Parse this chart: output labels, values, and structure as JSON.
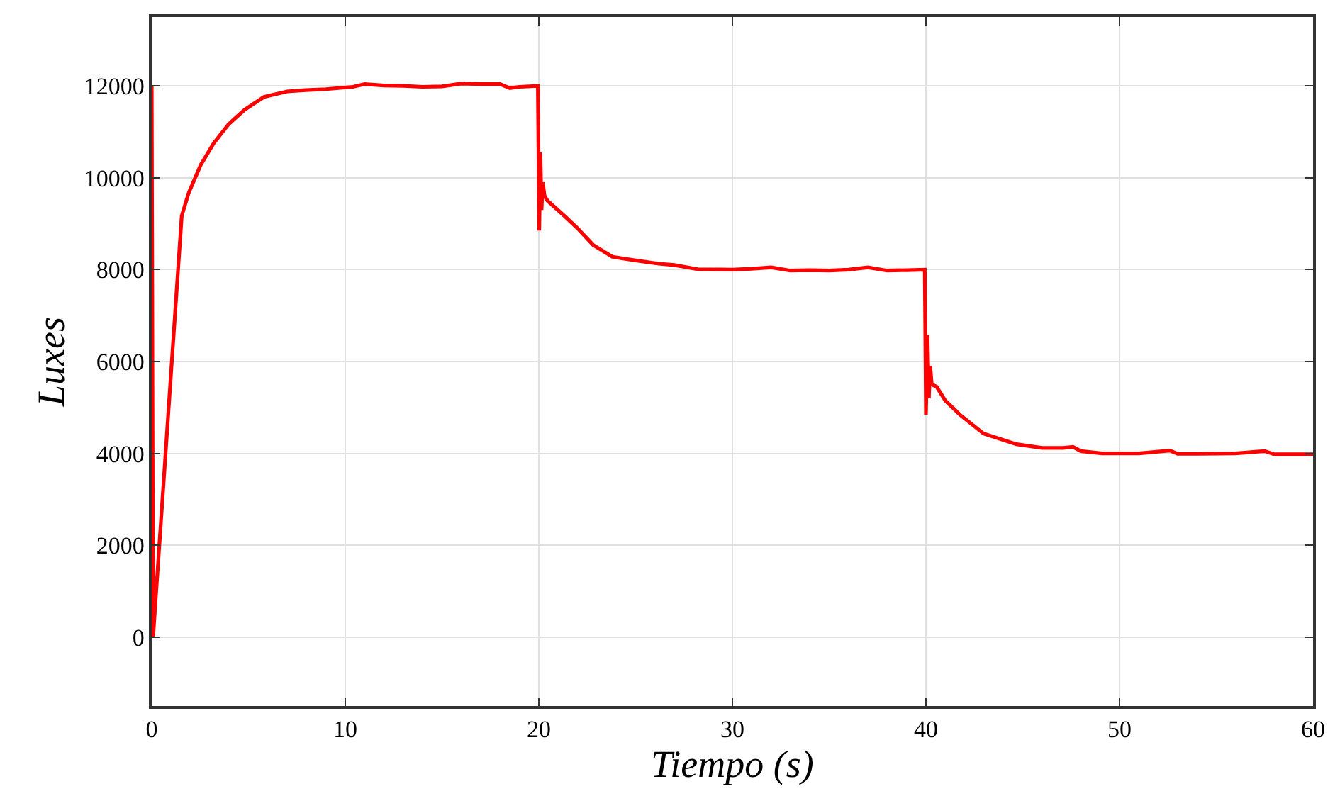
{
  "chart_data": {
    "type": "line",
    "xlabel": "Tiempo (s)",
    "ylabel": "Luxes",
    "xlim": [
      0,
      60
    ],
    "xticks": [
      0,
      10,
      20,
      30,
      40,
      50,
      60
    ],
    "ylim": [
      -1500,
      13500
    ],
    "yticks": [
      0,
      2000,
      4000,
      6000,
      8000,
      10000,
      12000
    ],
    "grid": true,
    "marker": "none",
    "line_style": "solid",
    "x": [
      0,
      0.07,
      1.55,
      1.9,
      2.53,
      3.2,
      3.98,
      4.8,
      5.8,
      7.0,
      7.96,
      9.0,
      10.4,
      11.0,
      12.0,
      13.0,
      14.0,
      15.0,
      16.0,
      17.0,
      18.0,
      18.5,
      19.0,
      19.95,
      20.02,
      20.08,
      20.14,
      20.2,
      20.3,
      20.45,
      21.35,
      22.0,
      22.8,
      23.8,
      25.0,
      26.2,
      27.0,
      28.2,
      30.0,
      31.0,
      32.0,
      33.0,
      34.0,
      35.0,
      36.0,
      37.0,
      38.0,
      39.0,
      39.94,
      40.0,
      40.08,
      40.15,
      40.22,
      40.3,
      40.55,
      41.0,
      41.76,
      42.98,
      44.68,
      46.0,
      47.1,
      47.6,
      48.0,
      49.1,
      51.0,
      52.6,
      53.0,
      54.0,
      56.0,
      57.5,
      58.0,
      60.0
    ],
    "series": [
      {
        "color": "#ff0000",
        "values": [
          12000,
          0,
          9170,
          9660,
          10280,
          10750,
          11170,
          11480,
          11760,
          11880,
          11910,
          11930,
          11980,
          12040,
          12010,
          12000,
          11980,
          11990,
          12050,
          12040,
          12040,
          11950,
          11980,
          12000,
          8850,
          10550,
          9300,
          9900,
          9600,
          9500,
          9160,
          8900,
          8540,
          8280,
          8200,
          8130,
          8100,
          8010,
          8000,
          8020,
          8050,
          7980,
          7990,
          7980,
          8000,
          8050,
          7980,
          7990,
          8000,
          4840,
          6580,
          5200,
          5900,
          5500,
          5450,
          5150,
          4840,
          4430,
          4200,
          4120,
          4120,
          4140,
          4050,
          4000,
          4000,
          4060,
          3990,
          3990,
          4000,
          4050,
          3980,
          3980
        ]
      }
    ]
  }
}
